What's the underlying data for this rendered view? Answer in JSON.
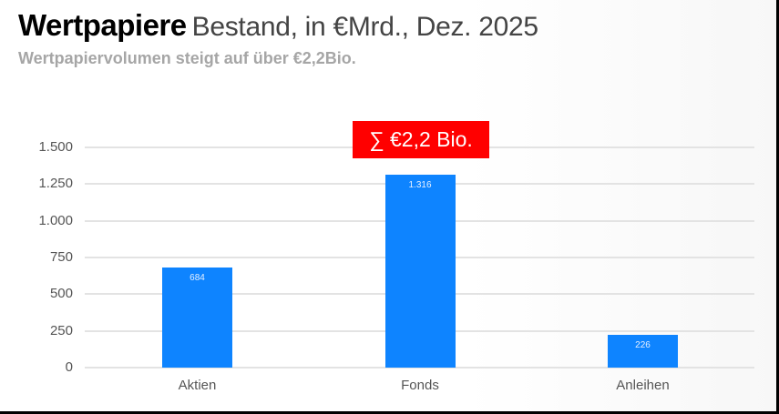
{
  "header": {
    "title": "Wertpapiere",
    "title_suffix": "Bestand, in €Mrd., Dez. 2025",
    "subtitle": "Wertpapiervolumen steigt auf über €2,2Bio."
  },
  "annotation": {
    "label": "∑ €2,2 Bio.",
    "color": "#ff0000"
  },
  "colors": {
    "bar": "#0e84ff",
    "annotation": "#ff0000",
    "gridline": "#e3e3e3"
  },
  "y_ticks": [
    "0",
    "250",
    "500",
    "750",
    "1.000",
    "1.250",
    "1.500"
  ],
  "chart_data": {
    "type": "bar",
    "title": "Wertpapiere Bestand, in €Mrd., Dez. 2025",
    "subtitle": "Wertpapiervolumen steigt auf über €2,2Bio.",
    "categories": [
      "Aktien",
      "Fonds",
      "Anleihen"
    ],
    "values": [
      684,
      1316,
      226
    ],
    "value_labels": [
      "684",
      "1.316",
      "226"
    ],
    "xlabel": "",
    "ylabel": "",
    "ylim": [
      0,
      1500
    ],
    "y_ticks": [
      0,
      250,
      500,
      750,
      1000,
      1250,
      1500
    ],
    "grid": true,
    "legend": "none",
    "annotations": [
      {
        "text": "∑ €2,2 Bio.",
        "position": "above Fonds",
        "background": "#ff0000"
      }
    ]
  }
}
